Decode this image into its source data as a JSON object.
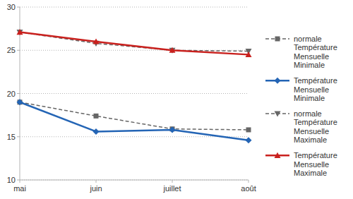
{
  "chart_data": {
    "type": "line",
    "categories": [
      "mai",
      "juin",
      "juillet",
      "août"
    ],
    "series": [
      {
        "name": "normale Température Mensuelle Minimale",
        "color": "#666666",
        "marker": "square",
        "line_style": "dashed",
        "values": [
          19.0,
          17.4,
          15.9,
          15.8
        ]
      },
      {
        "name": "Température Mensuelle Minimale",
        "color": "#2465b5",
        "marker": "diamond",
        "line_style": "solid",
        "values": [
          19.0,
          15.6,
          15.8,
          14.6
        ]
      },
      {
        "name": "normale Température Mensuelle Maximale",
        "color": "#666666",
        "marker": "triangle-down",
        "line_style": "dashed",
        "values": [
          27.1,
          25.8,
          25.0,
          24.9
        ]
      },
      {
        "name": "Température Mensuelle Maximale",
        "color": "#c9211e",
        "marker": "triangle",
        "line_style": "solid",
        "values": [
          27.1,
          26.0,
          25.0,
          24.5
        ]
      }
    ],
    "ylim": [
      10,
      30
    ],
    "yticks": [
      10,
      15,
      20,
      25,
      30
    ],
    "grid": true,
    "legend": "right"
  }
}
